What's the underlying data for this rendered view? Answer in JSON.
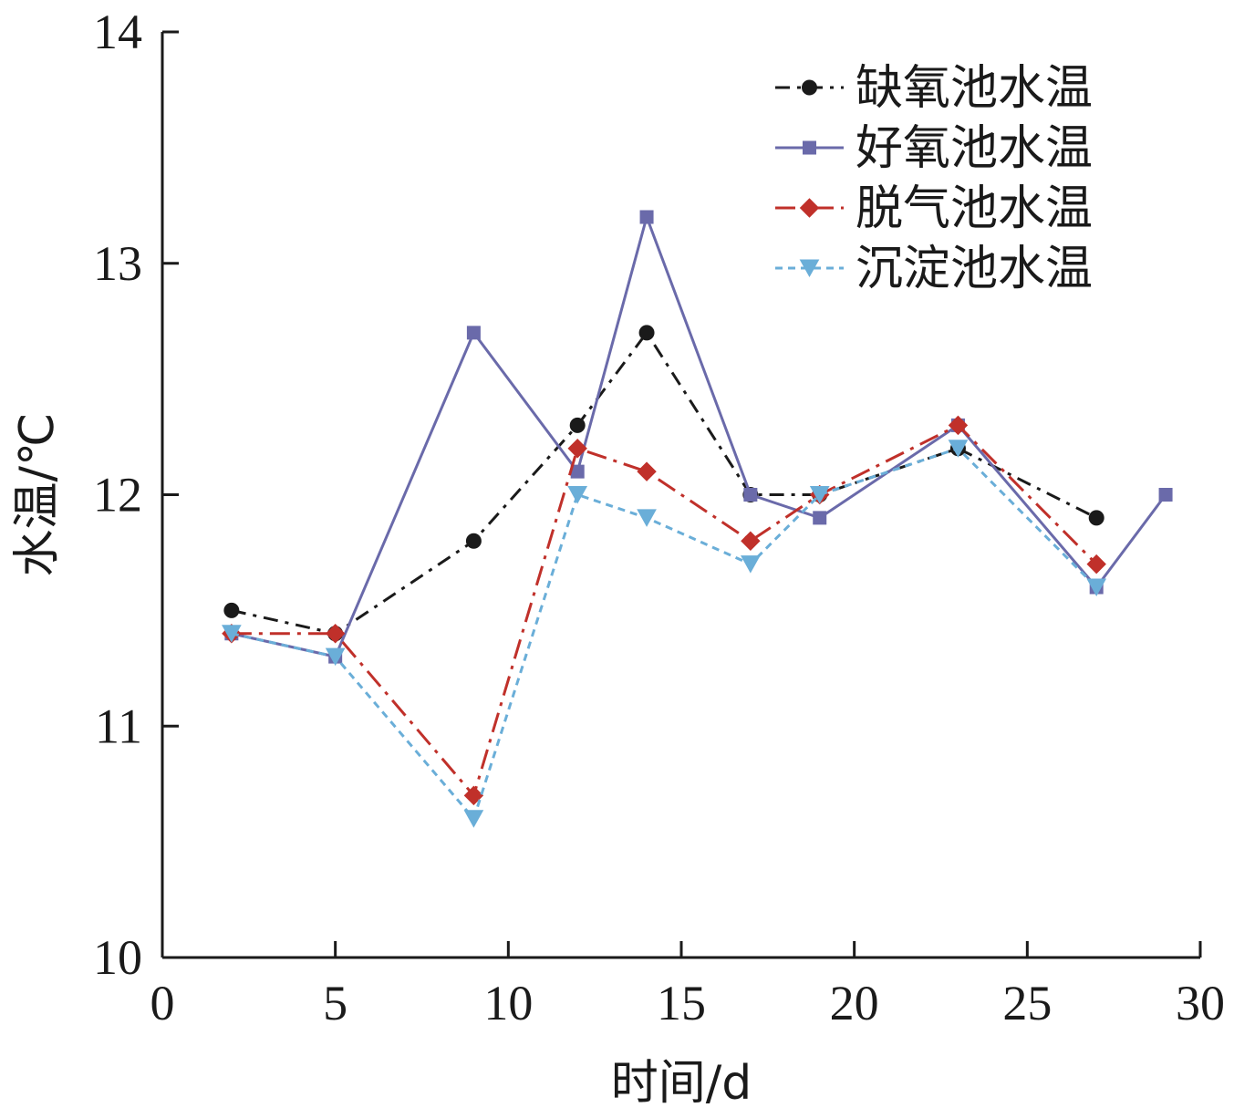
{
  "chart_data": {
    "type": "line",
    "xlabel": "时间/d",
    "ylabel": "水温/℃",
    "xlim": [
      0,
      30
    ],
    "ylim": [
      10,
      14
    ],
    "xticks": [
      0,
      5,
      10,
      15,
      20,
      25,
      30
    ],
    "yticks": [
      10,
      11,
      12,
      13,
      14
    ],
    "grid": false,
    "legend_position": "top-right",
    "series": [
      {
        "name": "缺氧池水温",
        "color": "#1a1a1a",
        "marker": "circle",
        "dash": "dash-dot",
        "x": [
          2,
          5,
          9,
          12,
          14,
          17,
          19,
          23,
          27
        ],
        "y": [
          11.5,
          11.4,
          11.8,
          12.3,
          12.7,
          12.0,
          12.0,
          12.2,
          11.9
        ]
      },
      {
        "name": "好氧池水温",
        "color": "#6a6aaa",
        "marker": "square",
        "dash": "solid",
        "x": [
          2,
          5,
          9,
          12,
          14,
          17,
          19,
          23,
          27,
          29
        ],
        "y": [
          11.4,
          11.3,
          12.7,
          12.1,
          13.2,
          12.0,
          11.9,
          12.3,
          11.6,
          12.0
        ]
      },
      {
        "name": "脱气池水温",
        "color": "#c0302a",
        "marker": "diamond",
        "dash": "long-dash-dot",
        "x": [
          2,
          5,
          9,
          12,
          14,
          17,
          19,
          23,
          27
        ],
        "y": [
          11.4,
          11.4,
          10.7,
          12.2,
          12.1,
          11.8,
          12.0,
          12.3,
          11.7
        ]
      },
      {
        "name": "沉淀池水温",
        "color": "#6aaed8",
        "marker": "triangle-down",
        "dash": "dotted",
        "x": [
          2,
          5,
          9,
          12,
          14,
          17,
          19,
          23,
          27
        ],
        "y": [
          11.4,
          11.3,
          10.6,
          12.0,
          11.9,
          11.7,
          12.0,
          12.2,
          11.6
        ]
      }
    ]
  }
}
